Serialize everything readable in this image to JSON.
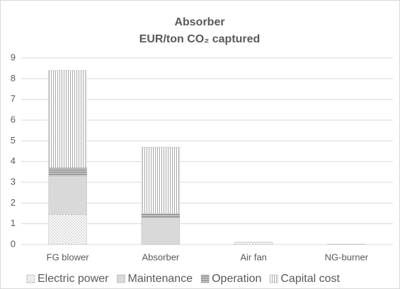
{
  "chart_data": {
    "type": "stacked_bar",
    "title": [
      "Absorber",
      "EUR/ton CO₂ captured"
    ],
    "categories": [
      "FG blower",
      "Absorber",
      "Air fan",
      "NG-burner"
    ],
    "series": [
      {
        "name": "Electric power",
        "color": "#7f7f7f",
        "pattern": "dots",
        "values": [
          1.45,
          0,
          0.12,
          0
        ]
      },
      {
        "name": "Maintenance",
        "color": "#d9d9d9",
        "pattern": "solid",
        "values": [
          1.85,
          1.3,
          0,
          0.02
        ]
      },
      {
        "name": "Operation",
        "color": "#8c8c8c",
        "pattern": "hlines",
        "values": [
          0.4,
          0.2,
          0,
          0
        ]
      },
      {
        "name": "Capital cost",
        "color": "#a6a6a6",
        "pattern": "vlines",
        "values": [
          4.7,
          3.2,
          0,
          0
        ]
      }
    ],
    "ylim": [
      0,
      9
    ],
    "yticks": [
      0,
      1,
      2,
      3,
      4,
      5,
      6,
      7,
      8,
      9
    ],
    "grid": true,
    "legend": "bottom"
  }
}
